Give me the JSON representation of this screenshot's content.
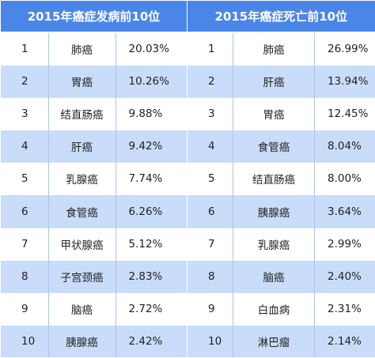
{
  "incidence": {
    "title": "2015年癌症发病前10位",
    "rows": [
      {
        "rank": "1",
        "cancer": "肺癌",
        "pct": "20.03%"
      },
      {
        "rank": "2",
        "cancer": "胃癌",
        "pct": "10.26%"
      },
      {
        "rank": "3",
        "cancer": "结直肠癌",
        "pct": "9.88%"
      },
      {
        "rank": "4",
        "cancer": "肝癌",
        "pct": "9.42%"
      },
      {
        "rank": "5",
        "cancer": "乳腺癌",
        "pct": "7.74%"
      },
      {
        "rank": "6",
        "cancer": "食管癌",
        "pct": "6.26%"
      },
      {
        "rank": "7",
        "cancer": "甲状腺癌",
        "pct": "5.12%"
      },
      {
        "rank": "8",
        "cancer": "子宫颈癌",
        "pct": "2.83%"
      },
      {
        "rank": "9",
        "cancer": "脑癌",
        "pct": "2.72%"
      },
      {
        "rank": "10",
        "cancer": "胰腺癌",
        "pct": "2.42%"
      }
    ]
  },
  "mortality": {
    "title": "2015年癌症死亡前10位",
    "rows": [
      {
        "rank": "1",
        "cancer": "肺癌",
        "pct": "26.99%"
      },
      {
        "rank": "2",
        "cancer": "肝癌",
        "pct": "13.94%"
      },
      {
        "rank": "3",
        "cancer": "胃癌",
        "pct": "12.45%"
      },
      {
        "rank": "4",
        "cancer": "食管癌",
        "pct": "8.04%"
      },
      {
        "rank": "5",
        "cancer": "结直肠癌",
        "pct": "8.00%"
      },
      {
        "rank": "6",
        "cancer": "胰腺癌",
        "pct": "3.64%"
      },
      {
        "rank": "7",
        "cancer": "乳腺癌",
        "pct": "2.99%"
      },
      {
        "rank": "8",
        "cancer": "脑癌",
        "pct": "2.40%"
      },
      {
        "rank": "9",
        "cancer": "白血病",
        "pct": "2.31%"
      },
      {
        "rank": "10",
        "cancer": "淋巴瘤",
        "pct": "2.14%"
      }
    ]
  },
  "colors": {
    "header_bg": "#4a86e8",
    "header_text": "#ffffff",
    "stripe_bg": "#c9dcf9",
    "row_bg": "#ffffff"
  }
}
